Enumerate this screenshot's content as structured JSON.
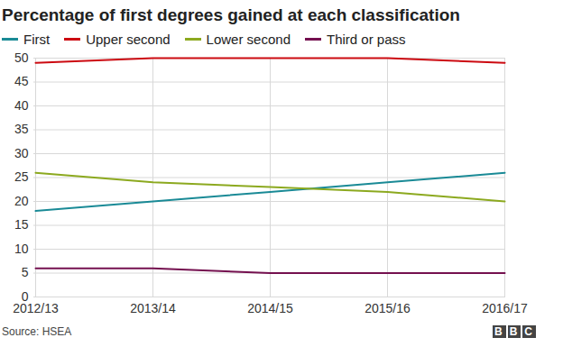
{
  "chart_data": {
    "type": "line",
    "title": "Percentage of first degrees gained at each classification",
    "source": "Source: HSEA",
    "logo": "BBC",
    "categories": [
      "2012/13",
      "2013/14",
      "2014/15",
      "2015/16",
      "2016/17"
    ],
    "series": [
      {
        "name": "First",
        "color": "#1a8a96",
        "values": [
          18,
          20,
          22,
          24,
          26
        ]
      },
      {
        "name": "Upper second",
        "color": "#cc0a11",
        "values": [
          49,
          50,
          50,
          50,
          49
        ]
      },
      {
        "name": "Lower second",
        "color": "#8ca91f",
        "values": [
          26,
          24,
          23,
          22,
          20
        ]
      },
      {
        "name": "Third or pass",
        "color": "#74104f",
        "values": [
          6,
          6,
          5,
          5,
          5
        ]
      }
    ],
    "ylim": [
      0,
      50
    ],
    "yticks": [
      0,
      5,
      10,
      15,
      20,
      25,
      30,
      35,
      40,
      45,
      50
    ],
    "grid": true,
    "legend": "top-left"
  }
}
